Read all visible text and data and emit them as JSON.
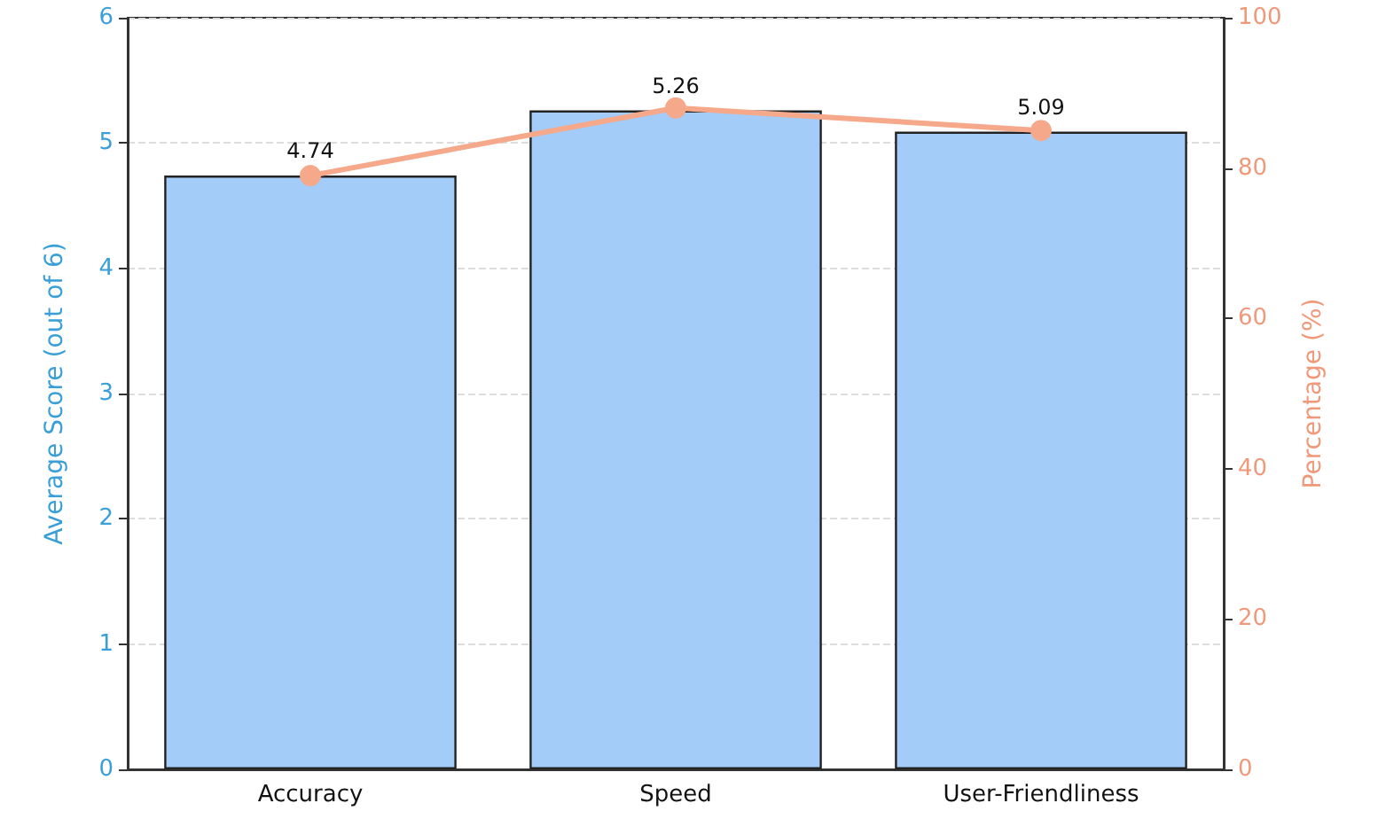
{
  "chart_data": {
    "type": "bar",
    "ylabel": "Average Score (out of 6)",
    "y2label": "Percentage (%)",
    "categories": [
      "Accuracy",
      "Speed",
      "User-Friendliness"
    ],
    "series": [
      {
        "color": "#a3cdf8",
        "values": [
          4.74,
          5.26,
          5.09
        ],
        "value_labels": [
          "4.74",
          "5.26",
          "5.09"
        ]
      },
      {
        "type": "line",
        "axis": "y2",
        "color": "#f5a88a",
        "values": [
          79,
          88,
          85
        ]
      }
    ],
    "ylim": [
      0,
      6
    ],
    "yticks": [
      0,
      1,
      2,
      3,
      4,
      5,
      6
    ],
    "y2lim": [
      0,
      100
    ],
    "y2ticks": [
      0,
      20,
      40,
      60,
      80,
      100
    ],
    "grid": "y",
    "marker": "circle",
    "line_style": "solid"
  }
}
